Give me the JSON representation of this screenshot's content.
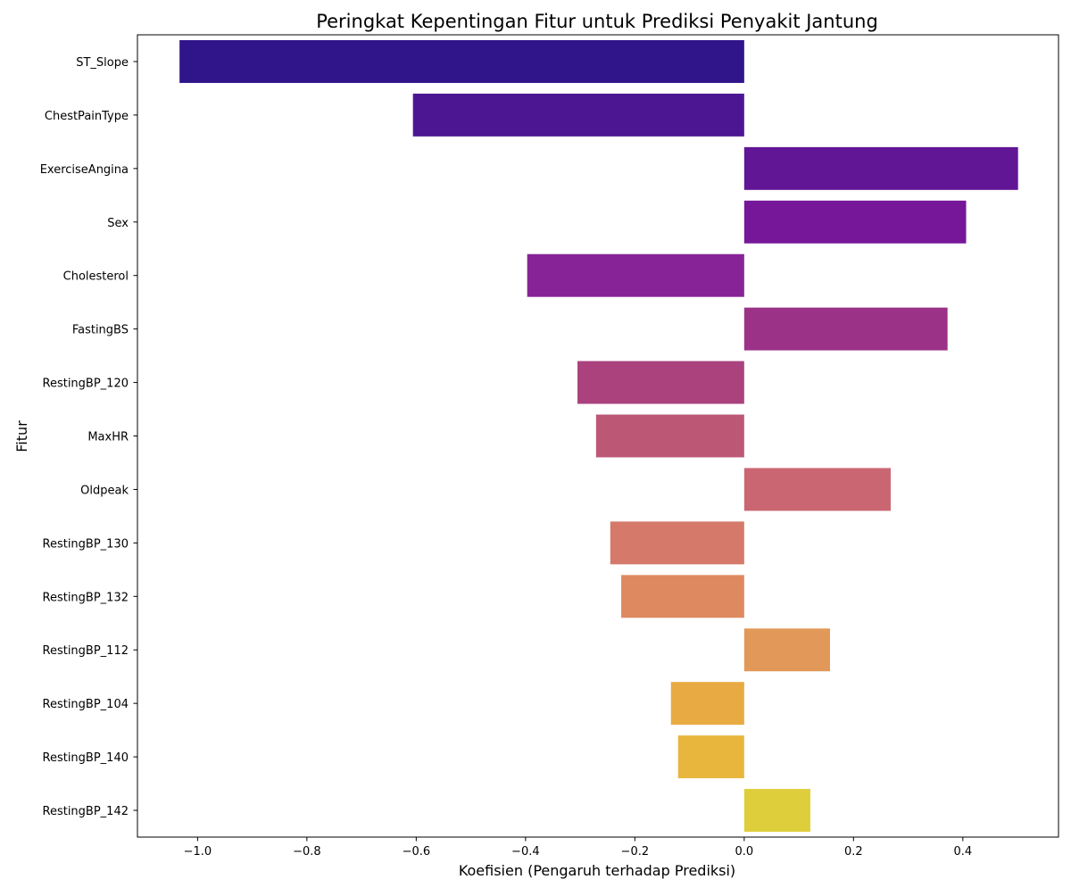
{
  "chart_data": {
    "type": "bar",
    "orientation": "horizontal",
    "title": "Peringkat Kepentingan Fitur untuk Prediksi Penyakit Jantung",
    "xlabel": "Koefisien (Pengaruh terhadap Prediksi)",
    "ylabel": "Fitur",
    "xlim": [
      -1.11,
      0.575
    ],
    "xticks": [
      -1.0,
      -0.8,
      -0.6,
      -0.4,
      -0.2,
      0.0,
      0.2,
      0.4
    ],
    "xtick_labels": [
      "−1.0",
      "−0.8",
      "−0.6",
      "−0.4",
      "−0.2",
      "0.0",
      "0.2",
      "0.4"
    ],
    "grid": false,
    "legend": "none",
    "palette": "plasma",
    "categories": [
      "ST_Slope",
      "ChestPainType",
      "ExerciseAngina",
      "Sex",
      "Cholesterol",
      "FastingBS",
      "RestingBP_120",
      "MaxHR",
      "Oldpeak",
      "RestingBP_130",
      "RestingBP_132",
      "RestingBP_112",
      "RestingBP_104",
      "RestingBP_140",
      "RestingBP_142"
    ],
    "values": [
      -1.033,
      -0.606,
      0.501,
      0.406,
      -0.397,
      0.372,
      -0.305,
      -0.271,
      0.268,
      -0.245,
      -0.225,
      0.157,
      -0.134,
      -0.121,
      0.121
    ],
    "colors": [
      "#30148a",
      "#4c1693",
      "#611696",
      "#761799",
      "#882397",
      "#9b3287",
      "#ab427e",
      "#bc5876",
      "#c96672",
      "#d5796a",
      "#df8960",
      "#e29858",
      "#e8aa42",
      "#e8b63d",
      "#dfce3b"
    ]
  }
}
